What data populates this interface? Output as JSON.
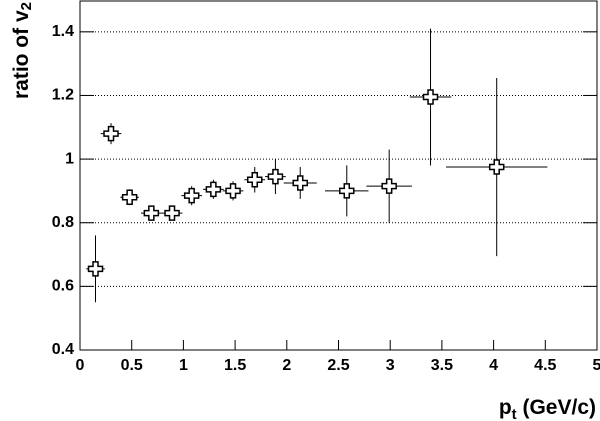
{
  "chart_data": {
    "type": "scatter",
    "xlabel": {
      "main": "p",
      "sub": "t",
      "rest": " (GeV/c)"
    },
    "ylabel": {
      "main": "ratio of v",
      "sub": "2"
    },
    "xlim": [
      0,
      5
    ],
    "ylim": [
      0.4,
      1.5
    ],
    "xticks": [
      0,
      0.5,
      1,
      1.5,
      2,
      2.5,
      3,
      3.5,
      4,
      4.5,
      5
    ],
    "yticks": [
      0.4,
      0.6,
      0.8,
      1,
      1.2,
      1.4
    ],
    "grid": true,
    "series": [
      {
        "color": "#000000",
        "x": [
          0.15,
          0.3,
          0.48,
          0.69,
          0.89,
          1.08,
          1.29,
          1.48,
          1.69,
          1.89,
          2.13,
          2.58,
          2.99,
          3.39,
          4.03
        ],
        "values": [
          0.655,
          1.08,
          0.88,
          0.83,
          0.83,
          0.885,
          0.905,
          0.9,
          0.935,
          0.945,
          0.925,
          0.9,
          0.915,
          1.195,
          0.975
        ],
        "xerr": [
          0.09,
          0.1,
          0.09,
          0.1,
          0.1,
          0.1,
          0.1,
          0.1,
          0.1,
          0.1,
          0.16,
          0.21,
          0.22,
          0.2,
          0.49
        ],
        "yerr": [
          0.105,
          0.033,
          0.025,
          0.015,
          0.015,
          0.03,
          0.03,
          0.03,
          0.04,
          0.055,
          0.05,
          0.08,
          0.115,
          0.215,
          0.28
        ]
      }
    ]
  }
}
